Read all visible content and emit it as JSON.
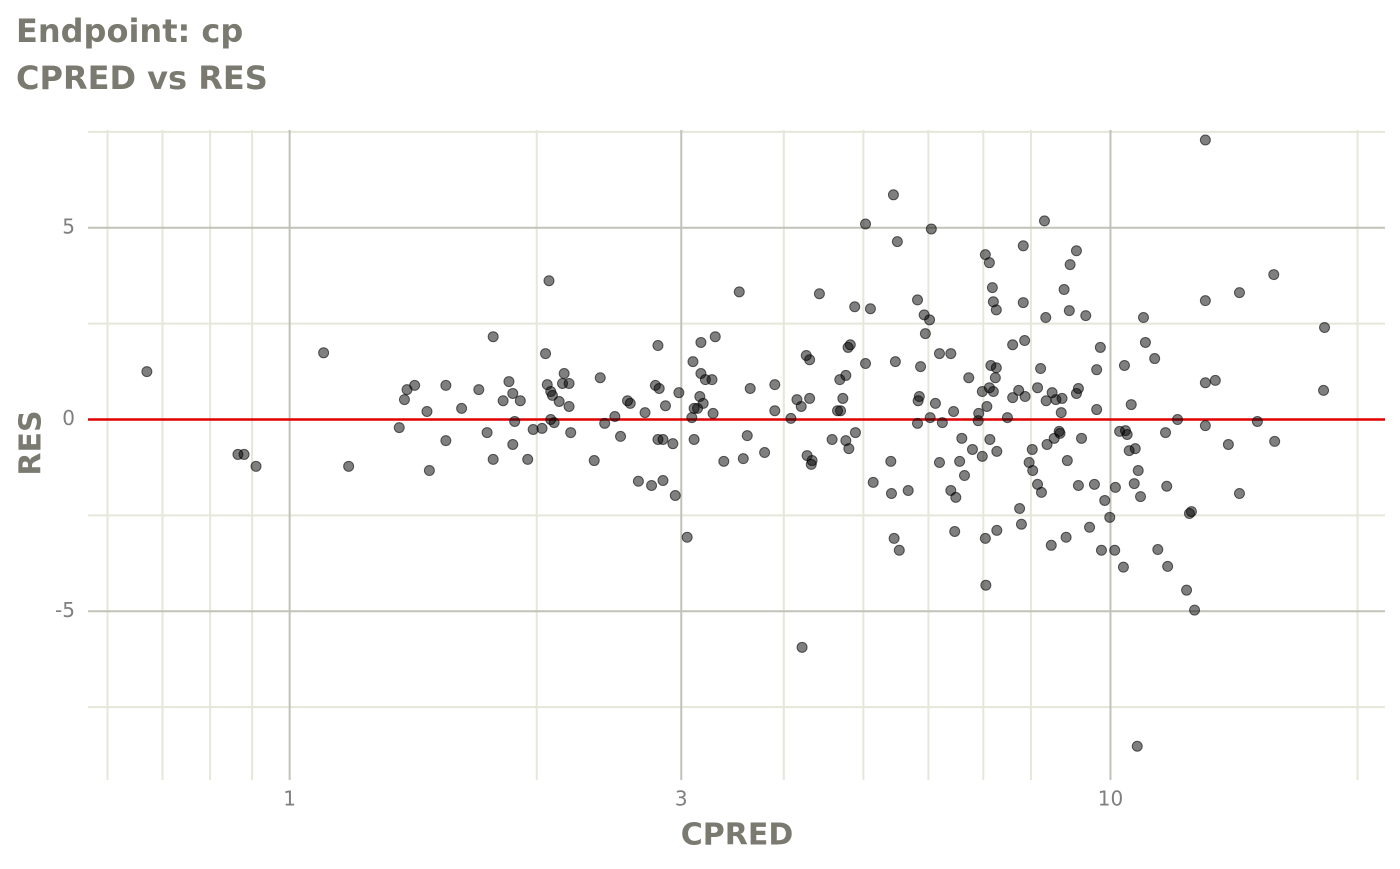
{
  "chart_data": {
    "type": "scatter",
    "title": "Endpoint:  cp",
    "subtitle": "CPRED vs RES",
    "x_label": "CPRED",
    "y_label": "RES",
    "x_log": true,
    "xlim": [
      0.568,
      21.6
    ],
    "ylim": [
      -9.4,
      7.55
    ],
    "xticks": [
      1,
      3,
      10
    ],
    "yticks": [
      -5,
      0,
      5
    ],
    "x_minor_grid": [
      0.6,
      0.7,
      0.8,
      0.9,
      2,
      4,
      5,
      6,
      7,
      8,
      20
    ],
    "y_minor_grid": [
      -7.5,
      -2.5,
      2.5,
      7.5
    ],
    "grid": true,
    "color": "#000000",
    "reference_line": {
      "y": 0,
      "color": "#e00000"
    },
    "x": [
      0.67,
      0.865,
      0.88,
      0.91,
      1.1,
      1.18,
      1.36,
      1.38,
      1.39,
      1.42,
      1.47,
      1.48,
      1.55,
      1.55,
      1.62,
      1.7,
      1.74,
      1.77,
      1.77,
      1.82,
      1.85,
      1.87,
      1.87,
      1.88,
      1.91,
      1.95,
      1.98,
      2.03,
      2.05,
      2.07,
      2.06,
      2.08,
      2.09,
      2.08,
      2.1,
      2.13,
      2.15,
      2.16,
      2.19,
      2.19,
      2.2,
      2.35,
      2.39,
      2.42,
      2.49,
      2.53,
      2.58,
      2.6,
      2.66,
      2.71,
      2.76,
      2.79,
      2.81,
      2.81,
      2.82,
      2.85,
      2.85,
      2.87,
      2.93,
      2.95,
      2.98,
      3.05,
      3.09,
      3.1,
      3.11,
      3.11,
      3.14,
      3.16,
      3.17,
      3.17,
      3.19,
      3.21,
      3.27,
      3.28,
      3.3,
      3.38,
      3.53,
      3.57,
      3.61,
      3.64,
      3.79,
      3.9,
      3.9,
      4.08,
      4.15,
      4.2,
      4.21,
      4.26,
      4.27,
      4.3,
      4.3,
      4.32,
      4.33,
      4.42,
      4.58,
      4.65,
      4.68,
      4.69,
      4.72,
      4.76,
      4.76,
      4.79,
      4.8,
      4.82,
      4.88,
      4.89,
      5.03,
      5.03,
      5.1,
      5.14,
      5.4,
      5.41,
      5.44,
      5.47,
      5.45,
      5.5,
      5.53,
      5.67,
      5.82,
      5.82,
      5.83,
      5.85,
      5.87,
      5.93,
      5.95,
      6.02,
      6.05,
      6.03,
      6.12,
      6.19,
      6.19,
      6.24,
      6.39,
      6.39,
      6.44,
      6.46,
      6.48,
      6.55,
      6.59,
      6.64,
      6.72,
      6.79,
      6.9,
      6.91,
      6.98,
      6.98,
      7.04,
      7.04,
      7.05,
      7.07,
      7.12,
      7.12,
      7.13,
      7.15,
      7.18,
      7.2,
      7.2,
      7.24,
      7.26,
      7.26,
      7.27,
      7.27,
      7.49,
      7.6,
      7.6,
      7.73,
      7.75,
      7.79,
      7.83,
      7.83,
      7.86,
      7.87,
      7.96,
      8.03,
      8.04,
      8.15,
      8.15,
      8.22,
      8.24,
      8.31,
      8.34,
      8.35,
      8.37,
      8.47,
      8.49,
      8.54,
      8.58,
      8.66,
      8.68,
      8.71,
      8.73,
      8.78,
      8.83,
      8.86,
      8.91,
      8.93,
      9.09,
      9.09,
      9.14,
      9.14,
      9.22,
      9.33,
      9.43,
      9.56,
      9.62,
      9.62,
      9.72,
      9.75,
      9.84,
      9.98,
      10.12,
      10.14,
      10.26,
      10.37,
      10.4,
      10.43,
      10.48,
      10.54,
      10.6,
      10.69,
      10.72,
      10.78,
      10.81,
      10.88,
      10.97,
      11.03,
      11.32,
      11.42,
      11.67,
      11.71,
      11.74,
      12.07,
      12.38,
      12.48,
      12.55,
      12.66,
      13.05,
      13.05,
      13.05,
      13.05,
      13.42,
      13.92,
      14.36,
      14.36,
      15.1,
      15.81,
      15.85,
      18.23,
      18.18
    ],
    "y": [
      1.25,
      -0.91,
      -0.91,
      -1.22,
      1.74,
      -1.22,
      -0.21,
      0.52,
      0.78,
      0.89,
      0.21,
      -1.33,
      0.89,
      -0.55,
      0.29,
      0.78,
      -0.34,
      2.16,
      -1.04,
      0.49,
      0.99,
      0.68,
      -0.65,
      -0.05,
      0.49,
      -1.04,
      -0.26,
      -0.23,
      1.72,
      3.62,
      0.91,
      0.73,
      0.63,
      0,
      -0.08,
      0.47,
      0.94,
      1.2,
      0.94,
      0.34,
      -0.34,
      -1.07,
      1.09,
      -0.1,
      0.08,
      -0.44,
      0.49,
      0.42,
      -1.61,
      0.18,
      -1.72,
      0.89,
      1.93,
      -0.52,
      0.81,
      -0.52,
      -1.59,
      0.36,
      -0.63,
      -1.98,
      0.7,
      -3.07,
      0.05,
      1.51,
      -0.52,
      0.29,
      0.29,
      0.6,
      2.01,
      1.2,
      0.42,
      1.04,
      1.04,
      0.16,
      2.16,
      -1.09,
      3.33,
      -1.02,
      -0.42,
      0.81,
      -0.86,
      0.91,
      0.23,
      0.03,
      0.52,
      0.34,
      -5.94,
      1.67,
      -0.94,
      1.56,
      0.55,
      -1.17,
      -1.07,
      3.28,
      -0.52,
      0.23,
      1.04,
      0.23,
      0.55,
      1.15,
      -0.55,
      1.88,
      -0.76,
      1.95,
      2.94,
      -0.34,
      5.1,
      1.46,
      2.89,
      -1.64,
      -1.09,
      -1.93,
      5.86,
      1.51,
      -3.1,
      4.64,
      -3.41,
      -1.85,
      3.12,
      -0.1,
      0.49,
      0.6,
      1.38,
      2.73,
      2.24,
      2.6,
      4.97,
      0.05,
      0.42,
      1.72,
      -1.12,
      -0.08,
      1.72,
      -1.85,
      0.21,
      -2.92,
      -2.03,
      -1.09,
      -0.49,
      -1.46,
      1.09,
      -0.78,
      -0.03,
      0.16,
      0.73,
      -0.96,
      4.3,
      -3.1,
      -4.32,
      0.34,
      4.09,
      0.83,
      -0.52,
      1.41,
      3.44,
      3.07,
      0.73,
      1.09,
      2.86,
      1.35,
      -0.83,
      -2.89,
      0.05,
      1.95,
      0.57,
      0.76,
      -2.32,
      -2.73,
      4.53,
      3.05,
      2.06,
      0.6,
      -1.12,
      -0.78,
      -1.33,
      0.83,
      -1.69,
      1.33,
      -1.9,
      5.18,
      2.66,
      0.49,
      -0.65,
      -3.28,
      0.7,
      -0.49,
      0.52,
      -0.31,
      -0.36,
      0.18,
      0.55,
      3.39,
      -3.07,
      -1.07,
      2.84,
      4.04,
      4.4,
      0.68,
      0.81,
      -1.72,
      -0.49,
      2.71,
      -2.81,
      -1.69,
      1.3,
      0.26,
      1.88,
      -3.41,
      -2.11,
      -2.55,
      -3.41,
      -1.77,
      -0.31,
      -3.85,
      1.41,
      -0.29,
      -0.39,
      -0.81,
      0.39,
      -1.67,
      -0.76,
      -8.52,
      -1.33,
      -2.01,
      2.66,
      2.01,
      1.59,
      -3.39,
      -0.34,
      -1.74,
      -3.83,
      0,
      -4.45,
      -2.45,
      -2.4,
      -4.97,
      7.29,
      3.1,
      0.96,
      -0.16,
      1.02,
      -0.65,
      3.31,
      -1.93,
      -0.05,
      3.78,
      -0.57,
      2.4,
      0.76
    ]
  }
}
